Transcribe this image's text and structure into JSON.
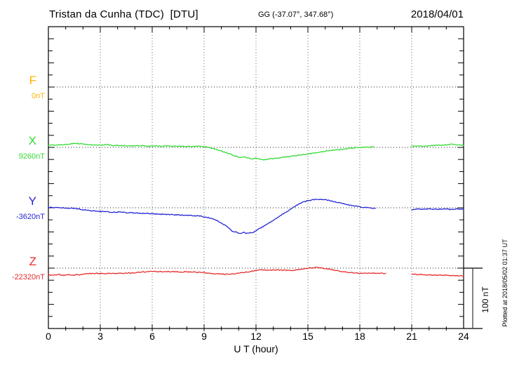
{
  "header": {
    "title": "Tristan da Cunha (TDC)  [DTU]",
    "coords": "GG (-37.07°, 347.68°)",
    "date": "2018/04/01"
  },
  "axis": {
    "xlabel": "U T (hour)",
    "x_ticks": [
      "0",
      "3",
      "6",
      "9",
      "12",
      "15",
      "18",
      "21",
      "24"
    ],
    "x_tick_hours": [
      0,
      3,
      6,
      9,
      12,
      15,
      18,
      21,
      24
    ],
    "x_range": [
      0,
      24
    ],
    "x_minor_step_hours": 1,
    "y_minor_tick_nT": 20,
    "baseline_spacing_nT": 100,
    "grid": "dotted vertical lines every 3 hours, dotted horizontal baseline per component"
  },
  "scale_bar": {
    "label": "100 nT",
    "span_nT": 100
  },
  "plotted_note": "Plotted at 2018/05/02 01:37 UT",
  "chart_data": {
    "type": "line",
    "title": "Tristan da Cunha (TDC)  [DTU]",
    "subtitle": "GG (-37.07°, 347.68°)",
    "date": "2018/04/01",
    "xlabel": "U T (hour)",
    "x_unit": "hour (UT)",
    "y_unit": "nT",
    "xlim": [
      0,
      24
    ],
    "legend_position": "left margin, one colored letter + baseline value per component",
    "series": [
      {
        "name": "F",
        "label": "F",
        "baseline_label": "0nT",
        "baseline_nT": 0,
        "color": "#FFB400",
        "segments": []
      },
      {
        "name": "X",
        "label": "X",
        "baseline_label": "9260nT",
        "baseline_nT": 9260,
        "color": "#33DB33",
        "segments": [
          [
            [
              0,
              9263.5
            ],
            [
              0.4,
              9264
            ],
            [
              0.8,
              9264.5
            ],
            [
              1.2,
              9265.5
            ],
            [
              1.6,
              9266.5
            ],
            [
              2,
              9266
            ],
            [
              2.4,
              9264.5
            ],
            [
              2.7,
              9264
            ],
            [
              3,
              9263.5
            ],
            [
              3.4,
              9264.5
            ],
            [
              3.7,
              9263
            ],
            [
              4,
              9263.5
            ],
            [
              4.3,
              9262.5
            ],
            [
              4.6,
              9263
            ],
            [
              5,
              9262.5
            ],
            [
              5.4,
              9263
            ],
            [
              5.8,
              9262
            ],
            [
              6.2,
              9262.5
            ],
            [
              6.6,
              9262
            ],
            [
              7,
              9262.5
            ],
            [
              7.4,
              9261.5
            ],
            [
              7.8,
              9262
            ],
            [
              8.2,
              9261.5
            ],
            [
              8.6,
              9262
            ],
            [
              9,
              9261
            ],
            [
              9.3,
              9260
            ],
            [
              9.6,
              9257.5
            ],
            [
              10,
              9254
            ],
            [
              10.4,
              9250
            ],
            [
              10.8,
              9246
            ],
            [
              11.1,
              9243
            ],
            [
              11.4,
              9244
            ],
            [
              11.7,
              9241
            ],
            [
              12,
              9242
            ],
            [
              12.4,
              9239
            ],
            [
              12.7,
              9241
            ],
            [
              13,
              9241
            ],
            [
              13.4,
              9243
            ],
            [
              13.8,
              9244.5
            ],
            [
              14.2,
              9246
            ],
            [
              14.6,
              9248
            ],
            [
              15,
              9249
            ],
            [
              15.4,
              9251
            ],
            [
              15.8,
              9253
            ],
            [
              16.2,
              9254.5
            ],
            [
              16.6,
              9256
            ],
            [
              17,
              9257
            ],
            [
              17.4,
              9258.5
            ],
            [
              17.8,
              9259.5
            ],
            [
              18.2,
              9260.5
            ],
            [
              18.5,
              9260.5
            ],
            [
              18.8,
              9261
            ]
          ],
          [
            [
              21,
              9262
            ],
            [
              21.4,
              9262.5
            ],
            [
              21.8,
              9262
            ],
            [
              22.2,
              9263
            ],
            [
              22.6,
              9263.5
            ],
            [
              23,
              9264.5
            ],
            [
              23.3,
              9265.5
            ],
            [
              23.6,
              9264.5
            ],
            [
              24,
              9263.5
            ]
          ]
        ]
      },
      {
        "name": "Y",
        "label": "Y",
        "baseline_label": "-3620nT",
        "baseline_nT": -3620,
        "color": "#2424D8",
        "segments": [
          [
            [
              0,
              -3619.5
            ],
            [
              0.4,
              -3619.5
            ],
            [
              0.8,
              -3620
            ],
            [
              1.2,
              -3620.5
            ],
            [
              1.6,
              -3621.5
            ],
            [
              2,
              -3623
            ],
            [
              2.4,
              -3624.5
            ],
            [
              2.8,
              -3625.5
            ],
            [
              3,
              -3626
            ],
            [
              3.4,
              -3627
            ],
            [
              3.8,
              -3627.5
            ],
            [
              4.1,
              -3627
            ],
            [
              4.4,
              -3628
            ],
            [
              4.8,
              -3628.5
            ],
            [
              5.2,
              -3629
            ],
            [
              5.6,
              -3629.5
            ],
            [
              6,
              -3630
            ],
            [
              6.4,
              -3630.5
            ],
            [
              6.8,
              -3631
            ],
            [
              7.2,
              -3631.5
            ],
            [
              7.6,
              -3632
            ],
            [
              8,
              -3632.5
            ],
            [
              8.4,
              -3633
            ],
            [
              8.8,
              -3634
            ],
            [
              9.2,
              -3636
            ],
            [
              9.6,
              -3639
            ],
            [
              10,
              -3645
            ],
            [
              10.3,
              -3651
            ],
            [
              10.6,
              -3658
            ],
            [
              10.9,
              -3661
            ],
            [
              11.1,
              -3662
            ],
            [
              11.3,
              -3661
            ],
            [
              11.5,
              -3662.5
            ],
            [
              11.8,
              -3661
            ],
            [
              12,
              -3658
            ],
            [
              12.3,
              -3653
            ],
            [
              12.6,
              -3648
            ],
            [
              13,
              -3641
            ],
            [
              13.4,
              -3633
            ],
            [
              13.8,
              -3626
            ],
            [
              14.1,
              -3620
            ],
            [
              14.4,
              -3615
            ],
            [
              14.7,
              -3611
            ],
            [
              15,
              -3608
            ],
            [
              15.3,
              -3606.5
            ],
            [
              15.6,
              -3606
            ],
            [
              15.9,
              -3606.5
            ],
            [
              16.2,
              -3607.5
            ],
            [
              16.5,
              -3609.5
            ],
            [
              16.8,
              -3611.5
            ],
            [
              17.1,
              -3613.5
            ],
            [
              17.4,
              -3615.5
            ],
            [
              17.7,
              -3617
            ],
            [
              18,
              -3618.5
            ],
            [
              18.3,
              -3619.5
            ],
            [
              18.6,
              -3620.5
            ],
            [
              18.9,
              -3621
            ]
          ],
          [
            [
              21,
              -3623.5
            ],
            [
              21.3,
              -3622.5
            ],
            [
              21.6,
              -3622.5
            ],
            [
              22,
              -3622
            ],
            [
              22.4,
              -3622.5
            ],
            [
              22.8,
              -3622
            ],
            [
              23.2,
              -3622.5
            ],
            [
              23.6,
              -3622
            ],
            [
              24,
              -3622
            ]
          ]
        ]
      },
      {
        "name": "Z",
        "label": "Z",
        "baseline_label": "-22320nT",
        "baseline_nT": -22320,
        "color": "#E82C2C",
        "segments": [
          [
            [
              0,
              -22331
            ],
            [
              0.3,
              -22331.5
            ],
            [
              0.6,
              -22331
            ],
            [
              0.9,
              -22332
            ],
            [
              1.2,
              -22331
            ],
            [
              1.5,
              -22331.5
            ],
            [
              1.8,
              -22331
            ],
            [
              2.1,
              -22329.5
            ],
            [
              2.4,
              -22329
            ],
            [
              2.8,
              -22328.5
            ],
            [
              3.2,
              -22329
            ],
            [
              3.6,
              -22328.5
            ],
            [
              4,
              -22329
            ],
            [
              4.4,
              -22328.5
            ],
            [
              4.8,
              -22328
            ],
            [
              5.2,
              -22327
            ],
            [
              5.6,
              -22326
            ],
            [
              6,
              -22325.5
            ],
            [
              6.4,
              -22326
            ],
            [
              6.8,
              -22325.5
            ],
            [
              7.2,
              -22326
            ],
            [
              7.6,
              -22326.5
            ],
            [
              8,
              -22326
            ],
            [
              8.4,
              -22326.5
            ],
            [
              8.8,
              -22327
            ],
            [
              9.2,
              -22328
            ],
            [
              9.6,
              -22329
            ],
            [
              10,
              -22330
            ],
            [
              10.4,
              -22330
            ],
            [
              10.8,
              -22329
            ],
            [
              11.2,
              -22327.5
            ],
            [
              11.6,
              -22326
            ],
            [
              12,
              -22323.5
            ],
            [
              12.4,
              -22323
            ],
            [
              12.8,
              -22323.5
            ],
            [
              13.2,
              -22323
            ],
            [
              13.6,
              -22323.5
            ],
            [
              14,
              -22323.5
            ],
            [
              14.4,
              -22323
            ],
            [
              14.8,
              -22321
            ],
            [
              15.2,
              -22319.5
            ],
            [
              15.5,
              -22319
            ],
            [
              15.8,
              -22319.5
            ],
            [
              16.2,
              -22321.5
            ],
            [
              16.6,
              -22324
            ],
            [
              17,
              -22325.5
            ],
            [
              17.4,
              -22327
            ],
            [
              17.8,
              -22328
            ],
            [
              18.2,
              -22328.5
            ],
            [
              18.6,
              -22328.5
            ],
            [
              19,
              -22328.5
            ],
            [
              19.5,
              -22328.5
            ]
          ],
          [
            [
              21,
              -22330
            ],
            [
              21.4,
              -22330.5
            ],
            [
              21.8,
              -22331
            ],
            [
              22.2,
              -22331.5
            ],
            [
              22.6,
              -22331.5
            ],
            [
              23,
              -22332
            ],
            [
              23.4,
              -22332.5
            ],
            [
              23.8,
              -22332.5
            ],
            [
              24,
              -22333
            ]
          ]
        ]
      }
    ]
  },
  "colors": {
    "frame": "#000000",
    "grid": "#666666",
    "baseline_dots": "#222222",
    "background": "#FFFFFF"
  }
}
